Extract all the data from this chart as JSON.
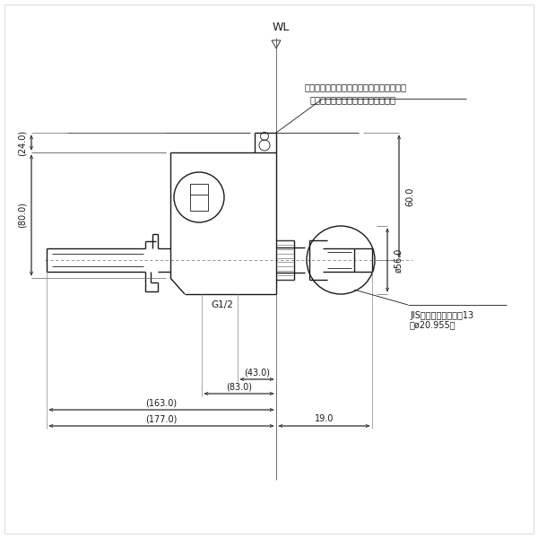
{
  "bg_color": "#ffffff",
  "lc": "#1a1a1a",
  "annotation_line1": "この部分にシャワーセットを取付けます。",
  "annotation_line2": "（シャワーセットは添付図面参照）",
  "label_g12": "G1/2",
  "label_jis1": "JIS給水栓取付ねじ　13",
  "label_jis2": "（ø20.955）",
  "dim_24": "(24.0)",
  "dim_80": "(80.0)",
  "dim_60": "60.0",
  "dim_56": "ø56.0",
  "dim_43": "(43.0)",
  "dim_83": "(83.0)",
  "dim_163": "(163.0)",
  "dim_177": "(177.0)",
  "dim_19": "19.0",
  "wl_label": "WL"
}
